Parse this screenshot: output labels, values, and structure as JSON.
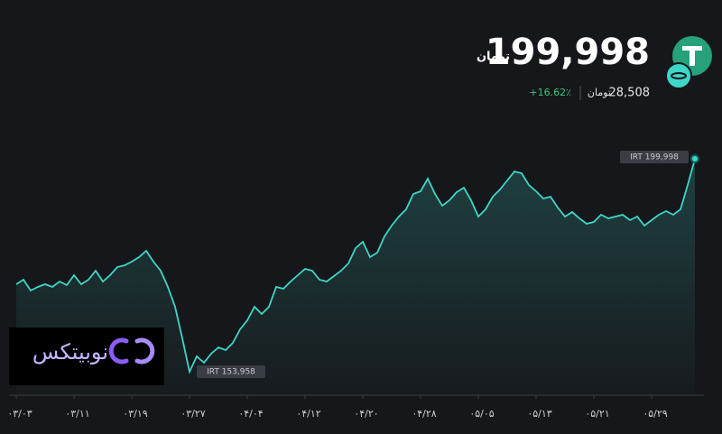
{
  "header": {
    "price": "199,998",
    "price_unit": "تومان",
    "usd_price": "28,508",
    "usd_unit": "تومان",
    "change": "+16.62٪"
  },
  "watermark": {
    "text": "نوبیتکس"
  },
  "chart_data": {
    "type": "line",
    "color": "#3ed6c8",
    "categories": [
      "۰۳/۰۳",
      null,
      null,
      null,
      null,
      null,
      null,
      null,
      "۰۳/۱۱",
      null,
      null,
      null,
      null,
      null,
      null,
      null,
      "۰۳/۱۹",
      null,
      null,
      null,
      null,
      null,
      null,
      null,
      "۰۳/۲۷",
      null,
      null,
      null,
      null,
      null,
      null,
      null,
      "۰۴/۰۴",
      null,
      null,
      null,
      null,
      null,
      null,
      null,
      "۰۴/۱۲",
      null,
      null,
      null,
      null,
      null,
      null,
      null,
      "۰۴/۲۰",
      null,
      null,
      null,
      null,
      null,
      null,
      null,
      "۰۴/۲۸",
      null,
      null,
      null,
      null,
      null,
      null,
      null,
      "۰۵/۰۵",
      null,
      null,
      null,
      null,
      null,
      null,
      null,
      "۰۵/۱۳",
      null,
      null,
      null,
      null,
      null,
      null,
      null,
      "۰۵/۲۱",
      null,
      null,
      null,
      null,
      null,
      null,
      null,
      "۰۵/۲۹",
      null,
      null,
      null,
      null,
      null,
      null
    ],
    "values": [
      172880,
      173860,
      171520,
      172300,
      172880,
      172300,
      173470,
      172690,
      174830,
      172880,
      173860,
      175810,
      173470,
      174830,
      176590,
      176980,
      177760,
      178740,
      180100,
      177760,
      175810,
      172300,
      168010,
      161180,
      153958,
      157280,
      155910,
      157860,
      159230,
      158640,
      160200,
      163130,
      165080,
      168010,
      166440,
      168010,
      172300,
      171910,
      173470,
      174830,
      176200,
      175810,
      173860,
      173470,
      174640,
      175810,
      177370,
      180690,
      182050,
      178740,
      179710,
      183220,
      185560,
      187520,
      189080,
      192390,
      192980,
      195710,
      192390,
      189860,
      191030,
      192780,
      193760,
      191030,
      187520,
      189080,
      191810,
      193370,
      195320,
      197270,
      196880,
      194340,
      192980,
      191420,
      191810,
      189470,
      187520,
      188490,
      187130,
      185950,
      186350,
      187910,
      187130,
      187520,
      187910,
      186740,
      187520,
      185560,
      186740,
      187910,
      188690,
      187910,
      189080,
      194340,
      199998
    ],
    "annotations": [
      "IRT 199,998",
      "IRT 153,958"
    ]
  }
}
